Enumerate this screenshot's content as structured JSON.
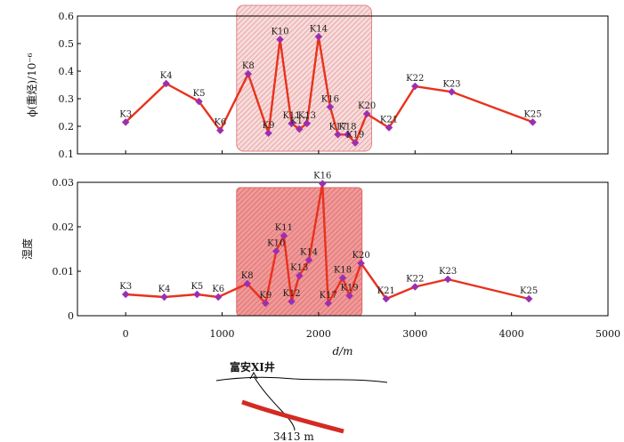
{
  "chart_data": [
    {
      "type": "line",
      "ylabel": "ϕ(重烃)/10⁻⁶",
      "ylim": [
        0.1,
        0.6
      ],
      "yticks": [
        "0.1",
        "0.2",
        "0.3",
        "0.4",
        "0.5",
        "0.6"
      ],
      "xlim": [
        -500,
        5000
      ],
      "highlight_range": [
        1150,
        2550
      ],
      "color": "#e8321e",
      "marker_color": "#9b2fb0",
      "points": [
        {
          "label": "K3",
          "x": 0,
          "y": 0.215
        },
        {
          "label": "K4",
          "x": 420,
          "y": 0.355
        },
        {
          "label": "K5",
          "x": 760,
          "y": 0.29
        },
        {
          "label": "K6",
          "x": 980,
          "y": 0.185
        },
        {
          "label": "K8",
          "x": 1270,
          "y": 0.39
        },
        {
          "label": "K9",
          "x": 1480,
          "y": 0.175
        },
        {
          "label": "K10",
          "x": 1600,
          "y": 0.515
        },
        {
          "label": "K11",
          "x": 1720,
          "y": 0.21
        },
        {
          "label": "K12",
          "x": 1800,
          "y": 0.19
        },
        {
          "label": "K13",
          "x": 1880,
          "y": 0.21
        },
        {
          "label": "K14",
          "x": 2000,
          "y": 0.525
        },
        {
          "label": "K16",
          "x": 2120,
          "y": 0.27
        },
        {
          "label": "K17",
          "x": 2200,
          "y": 0.17
        },
        {
          "label": "K18",
          "x": 2300,
          "y": 0.17
        },
        {
          "label": "K19",
          "x": 2380,
          "y": 0.14
        },
        {
          "label": "K20",
          "x": 2500,
          "y": 0.245
        },
        {
          "label": "K21",
          "x": 2730,
          "y": 0.195
        },
        {
          "label": "K22",
          "x": 3000,
          "y": 0.345
        },
        {
          "label": "K23",
          "x": 3380,
          "y": 0.325
        },
        {
          "label": "K25",
          "x": 4220,
          "y": 0.215
        }
      ]
    },
    {
      "type": "line",
      "ylabel": "湿度",
      "ylim": [
        0,
        0.03
      ],
      "yticks": [
        "0",
        "0.01",
        "0.02",
        "0.03"
      ],
      "xlabel": "d/m",
      "xlim": [
        -500,
        5000
      ],
      "xticks": [
        "0",
        "1000",
        "2000",
        "3000",
        "4000",
        "5000"
      ],
      "highlight_range": [
        1150,
        2450
      ],
      "color": "#e8321e",
      "marker_color": "#9b2fb0",
      "points": [
        {
          "label": "K3",
          "x": 0,
          "y": 0.0048
        },
        {
          "label": "K4",
          "x": 400,
          "y": 0.0042
        },
        {
          "label": "K5",
          "x": 740,
          "y": 0.0048
        },
        {
          "label": "K6",
          "x": 960,
          "y": 0.0042
        },
        {
          "label": "K8",
          "x": 1260,
          "y": 0.0072
        },
        {
          "label": "K9",
          "x": 1450,
          "y": 0.0028
        },
        {
          "label": "K10",
          "x": 1560,
          "y": 0.0145
        },
        {
          "label": "K11",
          "x": 1640,
          "y": 0.018
        },
        {
          "label": "K12",
          "x": 1720,
          "y": 0.0032
        },
        {
          "label": "K13",
          "x": 1800,
          "y": 0.009
        },
        {
          "label": "K14",
          "x": 1900,
          "y": 0.0125
        },
        {
          "label": "K16",
          "x": 2040,
          "y": 0.0297
        },
        {
          "label": "K17",
          "x": 2100,
          "y": 0.0028
        },
        {
          "label": "K18",
          "x": 2250,
          "y": 0.0085
        },
        {
          "label": "K19",
          "x": 2320,
          "y": 0.0045
        },
        {
          "label": "K20",
          "x": 2440,
          "y": 0.0118
        },
        {
          "label": "K21",
          "x": 2700,
          "y": 0.0038
        },
        {
          "label": "K22",
          "x": 3000,
          "y": 0.0065
        },
        {
          "label": "K23",
          "x": 3340,
          "y": 0.0082
        },
        {
          "label": "K25",
          "x": 4180,
          "y": 0.0038
        }
      ]
    }
  ],
  "profile": {
    "well_label": "富安XI井",
    "depth_label": "3413 m"
  }
}
